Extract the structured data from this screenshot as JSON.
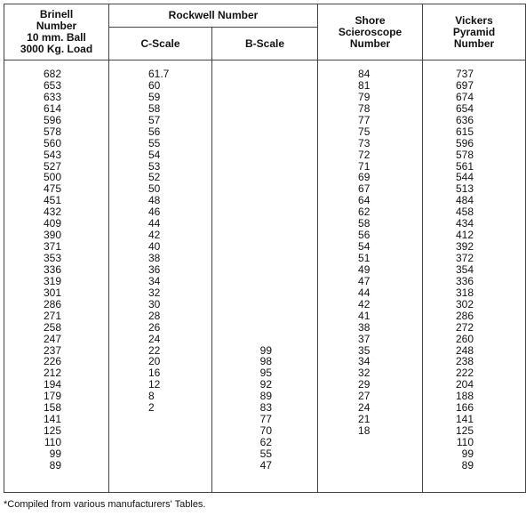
{
  "table": {
    "header": {
      "brinell": "Brinell\nNumber\n10 mm. Ball\n3000 Kg. Load",
      "rockwell": "Rockwell Number",
      "c_scale": "C-Scale",
      "b_scale": "B-Scale",
      "shore": "Shore\nScieroscope\nNumber",
      "vickers": "Vickers\nPyramid\nNumber"
    },
    "rows": [
      [
        "682",
        "61.7",
        null,
        "84",
        "737"
      ],
      [
        "653",
        "60",
        null,
        "81",
        "697"
      ],
      [
        "633",
        "59",
        null,
        "79",
        "674"
      ],
      [
        "614",
        "58",
        null,
        "78",
        "654"
      ],
      [
        "596",
        "57",
        null,
        "77",
        "636"
      ],
      [
        "578",
        "56",
        null,
        "75",
        "615"
      ],
      [
        "560",
        "55",
        null,
        "73",
        "596"
      ],
      [
        "543",
        "54",
        null,
        "72",
        "578"
      ],
      [
        "527",
        "53",
        null,
        "71",
        "561"
      ],
      [
        "500",
        "52",
        null,
        "69",
        "544"
      ],
      [
        "475",
        "50",
        null,
        "67",
        "513"
      ],
      [
        "451",
        "48",
        null,
        "64",
        "484"
      ],
      [
        "432",
        "46",
        null,
        "62",
        "458"
      ],
      [
        "409",
        "44",
        null,
        "58",
        "434"
      ],
      [
        "390",
        "42",
        null,
        "56",
        "412"
      ],
      [
        "371",
        "40",
        null,
        "54",
        "392"
      ],
      [
        "353",
        "38",
        null,
        "51",
        "372"
      ],
      [
        "336",
        "36",
        null,
        "49",
        "354"
      ],
      [
        "319",
        "34",
        null,
        "47",
        "336"
      ],
      [
        "301",
        "32",
        null,
        "44",
        "318"
      ],
      [
        "286",
        "30",
        null,
        "42",
        "302"
      ],
      [
        "271",
        "28",
        null,
        "41",
        "286"
      ],
      [
        "258",
        "26",
        null,
        "38",
        "272"
      ],
      [
        "247",
        "24",
        null,
        "37",
        "260"
      ],
      [
        "237",
        "22",
        "99",
        "35",
        "248"
      ],
      [
        "226",
        "20",
        "98",
        "34",
        "238"
      ],
      [
        "212",
        "16",
        "95",
        "32",
        "222"
      ],
      [
        "194",
        "12",
        "92",
        "29",
        "204"
      ],
      [
        "179",
        "8",
        "89",
        "27",
        "188"
      ],
      [
        "158",
        "2",
        "83",
        "24",
        "166"
      ],
      [
        "141",
        null,
        "77",
        "21",
        "141"
      ],
      [
        "125",
        null,
        "70",
        "18",
        "125"
      ],
      [
        "110",
        null,
        "62",
        null,
        "110"
      ],
      [
        "99",
        null,
        "55",
        null,
        "99"
      ],
      [
        "89",
        null,
        "47",
        null,
        "89"
      ]
    ]
  },
  "footnote": "*Compiled from various manufacturers' Tables."
}
